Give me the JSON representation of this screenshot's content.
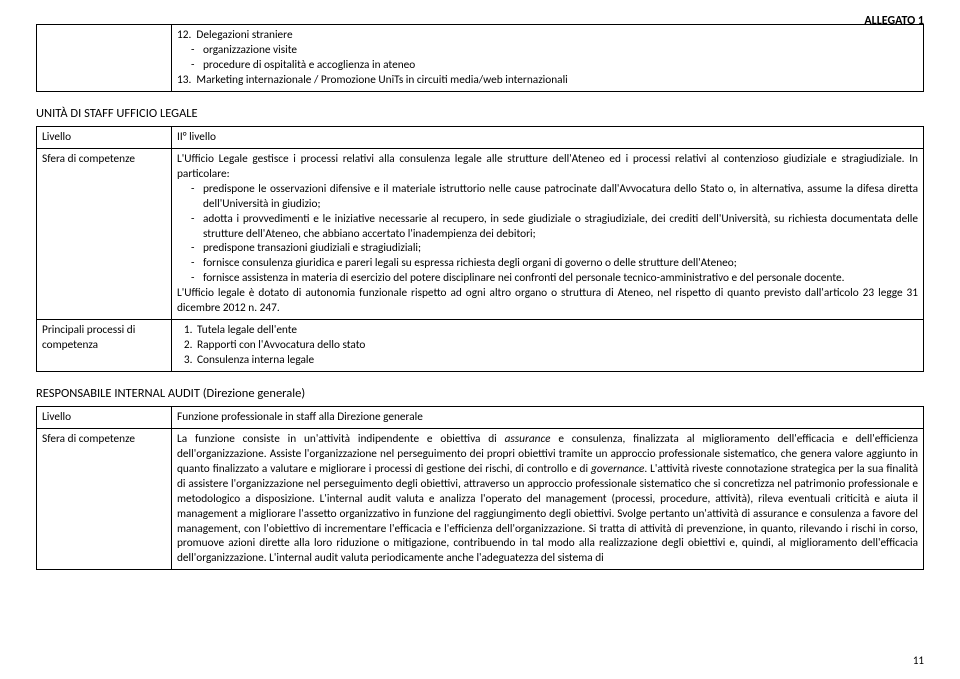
{
  "header": {
    "allegato": "ALLEGATO 1"
  },
  "topTable": {
    "item12_num": "12.",
    "item12_title": "Delegazioni straniere",
    "item12_sub1": "organizzazione visite",
    "item12_sub2": "procedure di ospitalità e accoglienza in ateneo",
    "item13_num": "13.",
    "item13_text": "Marketing internazionale / Promozione UniTs in circuiti media/web internazionali"
  },
  "section1": {
    "title": "UNITÀ DI STAFF UFFICIO LEGALE",
    "r1_label": "Livello",
    "r1_value": "II° livello",
    "r2_label": "Sfera di competenze",
    "r2_intro": "L'Ufficio Legale gestisce i processi relativi alla consulenza legale alle strutture dell'Ateneo ed i processi relativi al contenzioso giudiziale e stragiudiziale. In particolare:",
    "r2_b1": "predispone le osservazioni difensive e il materiale istruttorio nelle cause patrocinate dall'Avvocatura dello Stato o, in alternativa, assume la difesa diretta dell'Università in giudizio;",
    "r2_b2": "adotta i provvedimenti e le iniziative necessarie al recupero, in sede giudiziale o stragiudiziale, dei crediti dell'Università, su richiesta documentata delle strutture dell'Ateneo, che abbiano accertato l'inadempienza dei debitori;",
    "r2_b3": "predispone transazioni giudiziali e stragiudiziali;",
    "r2_b4": "fornisce consulenza giuridica e pareri legali su espressa richiesta degli organi di governo o delle strutture dell'Ateneo;",
    "r2_b5": "fornisce assistenza in materia di esercizio del potere disciplinare nei confronti del personale tecnico-amministrativo e del personale docente.",
    "r2_outro": "L'Ufficio legale è dotato di autonomia funzionale rispetto ad ogni altro organo o struttura di Ateneo, nel rispetto di quanto previsto dall'articolo 23 legge 31 dicembre 2012 n. 247.",
    "r3_label": "Principali processi di competenza",
    "r3_i1": "Tutela legale dell'ente",
    "r3_i2": "Rapporti con l'Avvocatura dello stato",
    "r3_i3": "Consulenza interna legale"
  },
  "section2": {
    "title": "RESPONSABILE INTERNAL AUDIT (Direzione generale)",
    "r1_label": "Livello",
    "r1_value": "Funzione professionale in staff alla Direzione generale",
    "r2_label": "Sfera di competenze",
    "r2_frag1": "La funzione consiste in un'attività indipendente e obiettiva di ",
    "r2_em1": "assurance",
    "r2_frag2": " e consulenza, finalizzata al miglioramento dell'efficacia e dell'efficienza dell'organizzazione. Assiste l'organizzazione nel perseguimento dei propri obiettivi tramite un approccio professionale sistematico, che genera valore aggiunto in quanto finalizzato a valutare e migliorare i processi di gestione dei rischi, di controllo e di ",
    "r2_em2": "governance",
    "r2_frag3": ". L'attività riveste connotazione strategica per la sua finalità di assistere l'organizzazione nel perseguimento degli obiettivi, attraverso un approccio professionale sistematico che si concretizza nel patrimonio professionale e metodologico a disposizione. L'internal audit valuta e analizza l'operato del management (processi, procedure, attività), rileva eventuali criticità e aiuta il management a migliorare l'assetto organizzativo in funzione del raggiungimento degli obiettivi. Svolge pertanto un'attività di assurance e consulenza a favore del management, con l'obiettivo di incrementare l'efficacia e l'efficienza dell'organizzazione. Si tratta di attività di prevenzione, in quanto, rilevando i rischi in corso, promuove azioni dirette alla loro riduzione o mitigazione, contribuendo in tal modo alla realizzazione degli obiettivi e, quindi, al miglioramento dell'efficacia dell'organizzazione. L'internal audit valuta periodicamente anche l'adeguatezza del sistema di"
  },
  "pageNumber": "11"
}
